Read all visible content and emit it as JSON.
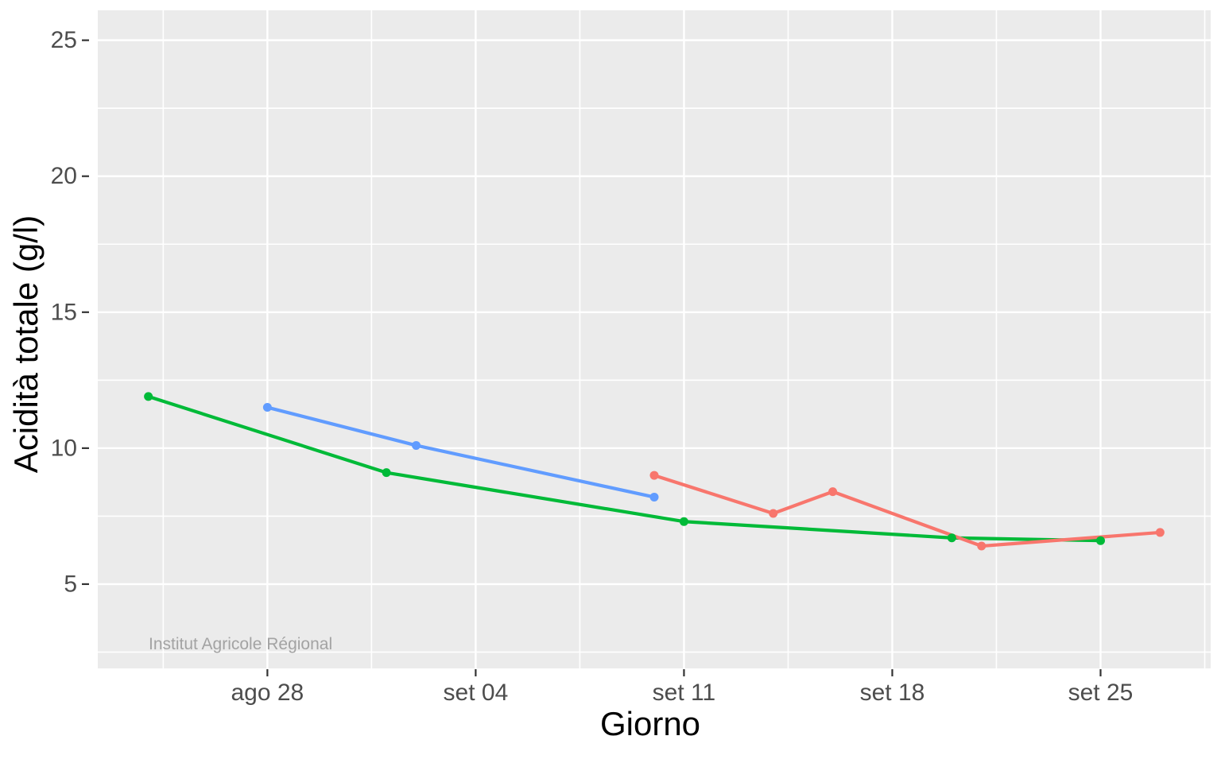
{
  "chart_data": {
    "type": "line",
    "title": "",
    "xlabel": "Giorno",
    "ylabel": "Acidità totale (g/l)",
    "watermark": "Institut Agricole Régional",
    "legend": "none",
    "grid": "on",
    "panel_bg": "#EBEBEB",
    "grid_color": "#FFFFFF",
    "tick_color": "#333333",
    "tick_label_color": "#4D4D4D",
    "axis_title_color": "#000000",
    "watermark_color": "#A3A3A3",
    "x_axis": {
      "label": "Giorno",
      "unit": "days, offset from ago 28",
      "range_days": [
        -5.7,
        31.7
      ],
      "major_ticks": [
        {
          "day": 0,
          "label": "ago 28"
        },
        {
          "day": 7,
          "label": "set 04"
        },
        {
          "day": 14,
          "label": "set 11"
        },
        {
          "day": 21,
          "label": "set 18"
        },
        {
          "day": 28,
          "label": "set 25"
        }
      ],
      "minor_days": [
        -3.5,
        3.5,
        10.5,
        17.5,
        24.5,
        31.5
      ]
    },
    "y_axis": {
      "label": "Acidità totale (g/l)",
      "range": [
        1.9,
        26.1
      ],
      "major_ticks": [
        {
          "value": 5,
          "label": "5"
        },
        {
          "value": 10,
          "label": "10"
        },
        {
          "value": 15,
          "label": "15"
        },
        {
          "value": 20,
          "label": "20"
        },
        {
          "value": 25,
          "label": "25"
        }
      ],
      "minor_values": [
        2.5,
        7.5,
        12.5,
        17.5,
        22.5
      ]
    },
    "series": [
      {
        "name": "green",
        "color": "#00BA38",
        "points": [
          {
            "day": -4,
            "date": "ago 24",
            "value": 11.9
          },
          {
            "day": 4,
            "date": "set 01",
            "value": 9.1
          },
          {
            "day": 14,
            "date": "set 11",
            "value": 7.3
          },
          {
            "day": 23,
            "date": "set 20",
            "value": 6.7
          },
          {
            "day": 28,
            "date": "set 25",
            "value": 6.6
          }
        ]
      },
      {
        "name": "blue",
        "color": "#619CFF",
        "points": [
          {
            "day": 0,
            "date": "ago 28",
            "value": 11.5
          },
          {
            "day": 5,
            "date": "set 02",
            "value": 10.1
          },
          {
            "day": 13,
            "date": "set 10",
            "value": 8.2
          }
        ]
      },
      {
        "name": "red",
        "color": "#F8766D",
        "points": [
          {
            "day": 13,
            "date": "set 10",
            "value": 9.0
          },
          {
            "day": 17,
            "date": "set 14",
            "value": 7.6
          },
          {
            "day": 19,
            "date": "set 16",
            "value": 8.4
          },
          {
            "day": 24,
            "date": "set 21",
            "value": 6.4
          },
          {
            "day": 30,
            "date": "set 27",
            "value": 6.9
          }
        ]
      }
    ]
  }
}
